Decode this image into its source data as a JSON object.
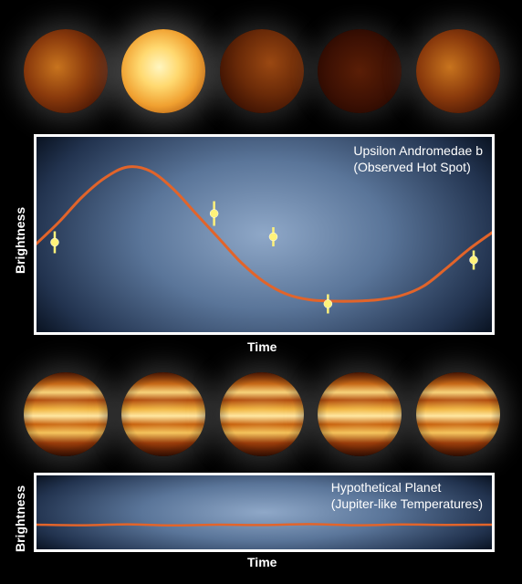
{
  "colors": {
    "curve": "#e2642a",
    "point": "#fff27a",
    "frame": "#ffffff",
    "planet_hot": "#fff0a8",
    "planet_dark": "#1f0700"
  },
  "top_planets": [
    {
      "brightness": "medium"
    },
    {
      "brightness": "bright"
    },
    {
      "brightness": "dim"
    },
    {
      "brightness": "dark"
    },
    {
      "brightness": "medium"
    }
  ],
  "bottom_planets": [
    {
      "pattern": "banded"
    },
    {
      "pattern": "banded"
    },
    {
      "pattern": "banded"
    },
    {
      "pattern": "banded"
    },
    {
      "pattern": "banded"
    }
  ],
  "chart_data": [
    {
      "type": "line",
      "title": "Upsilon Andromedae b\n(Observed Hot Spot)",
      "title_lines": [
        "Upsilon Andromedae b",
        "(Observed Hot Spot)"
      ],
      "xlabel": "Time",
      "ylabel": "Brightness",
      "grid": false,
      "curve": {
        "x": [
          0,
          0.05,
          0.1,
          0.15,
          0.2,
          0.25,
          0.3,
          0.35,
          0.4,
          0.45,
          0.5,
          0.55,
          0.6,
          0.65,
          0.7,
          0.75,
          0.8,
          0.85,
          0.9,
          0.95,
          1.0
        ],
        "y": [
          0.44,
          0.6,
          0.78,
          0.92,
          1.0,
          0.97,
          0.84,
          0.66,
          0.48,
          0.3,
          0.16,
          0.07,
          0.03,
          0.02,
          0.02,
          0.03,
          0.06,
          0.13,
          0.26,
          0.4,
          0.52
        ]
      },
      "points": [
        {
          "x": 0.04,
          "y": 0.45,
          "err": 0.08
        },
        {
          "x": 0.39,
          "y": 0.66,
          "err": 0.09
        },
        {
          "x": 0.52,
          "y": 0.49,
          "err": 0.07
        },
        {
          "x": 0.64,
          "y": 0.0,
          "err": 0.07
        },
        {
          "x": 0.96,
          "y": 0.32,
          "err": 0.07
        }
      ],
      "xlim": [
        0,
        1
      ],
      "ylim": [
        -0.1,
        1.1
      ]
    },
    {
      "type": "line",
      "title": "Hypothetical Planet\n(Jupiter-like Temperatures)",
      "title_lines": [
        "Hypothetical Planet",
        "(Jupiter-like Temperatures)"
      ],
      "xlabel": "Time",
      "ylabel": "Brightness",
      "grid": false,
      "curve": {
        "x": [
          0,
          0.1,
          0.2,
          0.3,
          0.4,
          0.5,
          0.6,
          0.7,
          0.8,
          0.9,
          1.0
        ],
        "y": [
          0.5,
          0.47,
          0.52,
          0.46,
          0.5,
          0.48,
          0.53,
          0.47,
          0.51,
          0.49,
          0.5
        ]
      },
      "xlim": [
        0,
        1
      ],
      "ylim": [
        0,
        1
      ]
    }
  ]
}
